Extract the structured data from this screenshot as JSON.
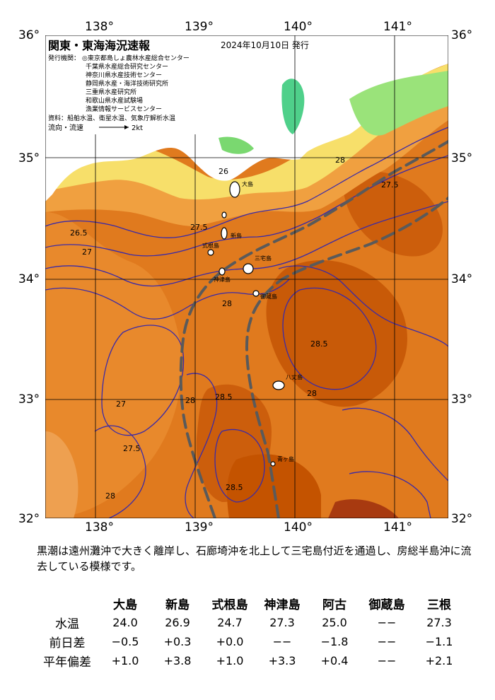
{
  "map": {
    "title": "関東・東海海況速報",
    "date": "2024年10月10日 発行",
    "issuers_label": "発行機関：",
    "issuers": [
      "◎東京都島しょ農林水産総合センター",
      "千葉県水産総合研究センター",
      "神奈川県水産技術センター",
      "静岡県水産・海洋技術研究所",
      "三重県水産研究所",
      "和歌山県水産試験場",
      "漁業情報サービスセンター"
    ],
    "sources": "資料：船舶水温、衛星水温、気象庁解析水温",
    "current_label": "流向・流速",
    "current_scale": "2kt",
    "lon_labels": [
      "138°",
      "139°",
      "140°",
      "141°"
    ],
    "lat_labels": [
      "36°",
      "35°",
      "34°",
      "33°",
      "32°"
    ],
    "islands": [
      "大島",
      "新島",
      "式根島",
      "神津島",
      "三宅島",
      "御蔵島",
      "八丈島",
      "青ヶ島"
    ],
    "isotherm_labels": [
      "26",
      "26.5",
      "27",
      "27.5",
      "28",
      "28.5",
      "28",
      "27.5",
      "27",
      "28.5",
      "28",
      "27.5",
      "28",
      "28.5",
      "28"
    ],
    "colors": {
      "ocean_dark": "#c45300",
      "ocean": "#e07a1e",
      "ocean_light": "#f0a040",
      "coast_yellow": "#f7df6a",
      "land": "#ffffff",
      "kuroshio": "#5a5a5a",
      "contour": "#3a2aa8",
      "green": "#4fd08a"
    }
  },
  "note": "黒潮は遠州灘沖で大きく離岸し、石廊埼沖を北上して三宅島付近を通過し、房総半島沖に流去している模様です。",
  "stats": {
    "columns": [
      "大島",
      "新島",
      "式根島",
      "神津島",
      "阿古",
      "御蔵島",
      "三根"
    ],
    "rows": [
      {
        "label": "水温",
        "values": [
          "24.0",
          "26.9",
          "24.7",
          "27.3",
          "25.0",
          "−−",
          "27.3"
        ]
      },
      {
        "label": "前日差",
        "values": [
          "−0.5",
          "+0.3",
          "+0.0",
          "−−",
          "−1.8",
          "−−",
          "−1.1"
        ]
      },
      {
        "label": "平年偏差",
        "values": [
          "+1.0",
          "+3.8",
          "+1.0",
          "+3.3",
          "+0.4",
          "−−",
          "+2.1"
        ]
      }
    ]
  }
}
